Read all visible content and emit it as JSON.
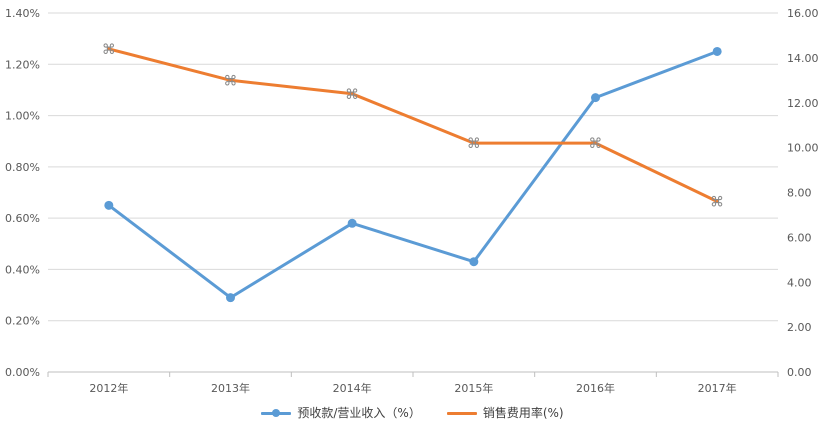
{
  "chart_data": {
    "type": "line",
    "categories": [
      "2012年",
      "2013年",
      "2014年",
      "2015年",
      "2016年",
      "2017年"
    ],
    "series": [
      {
        "name": "预收款/营业收入（%）",
        "axis": "left",
        "color": "#5b9bd5",
        "marker": "circle",
        "values": [
          0.65,
          0.29,
          0.58,
          0.43,
          1.07,
          1.25
        ]
      },
      {
        "name": "销售费用率(%)",
        "axis": "right",
        "color": "#ed7d31",
        "marker": "⌘",
        "values": [
          14.4,
          13.0,
          12.4,
          10.2,
          10.2,
          7.6
        ]
      }
    ],
    "left_axis": {
      "ylim": [
        0,
        1.4
      ],
      "ticks": [
        0,
        0.2,
        0.4,
        0.6,
        0.8,
        1.0,
        1.2,
        1.4
      ],
      "tick_labels": [
        "0.00%",
        "0.20%",
        "0.40%",
        "0.60%",
        "0.80%",
        "1.00%",
        "1.20%",
        "1.40%"
      ]
    },
    "right_axis": {
      "ylim": [
        0,
        16
      ],
      "ticks": [
        0,
        2,
        4,
        6,
        8,
        10,
        12,
        14,
        16
      ],
      "tick_labels": [
        "0.00",
        "2.00",
        "4.00",
        "6.00",
        "8.00",
        "10.00",
        "12.00",
        "14.00",
        "16.00"
      ]
    },
    "grid": true,
    "legend_position": "bottom-center"
  }
}
